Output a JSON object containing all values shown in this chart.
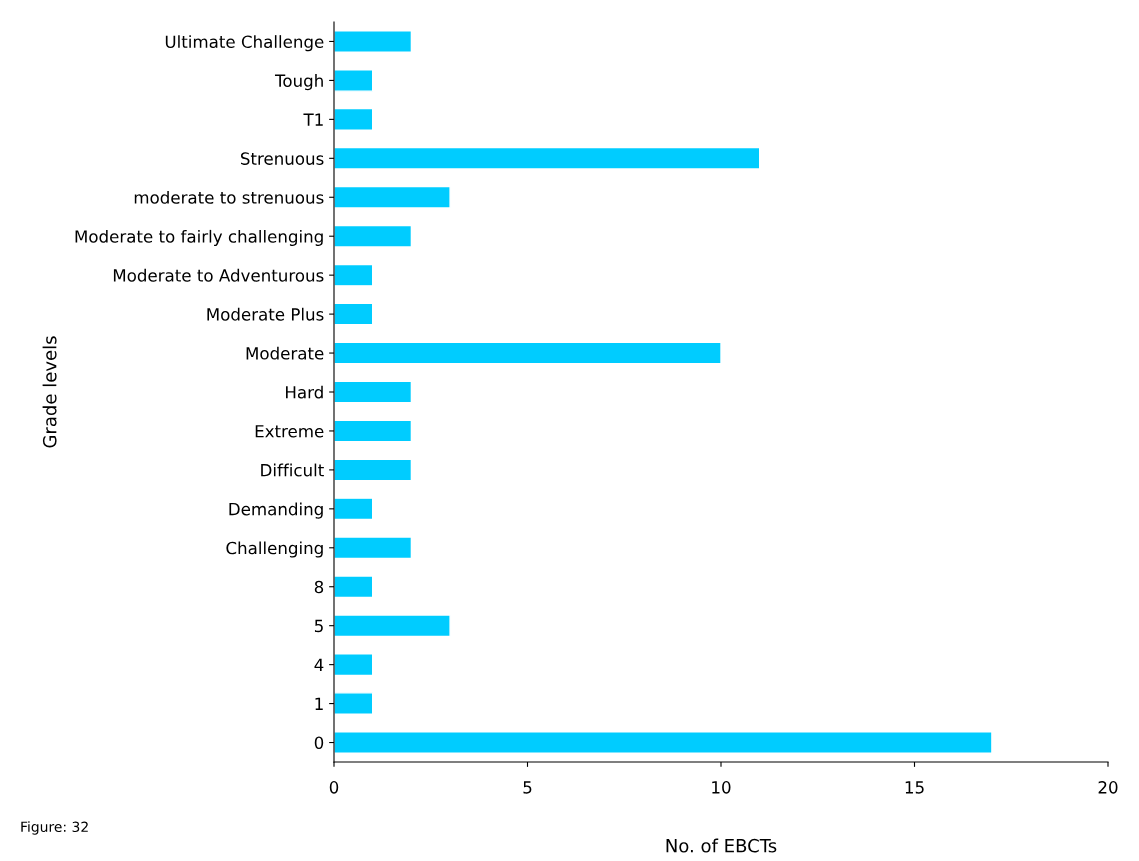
{
  "chart_data": {
    "type": "bar",
    "orientation": "horizontal",
    "categories": [
      "Ultimate Challenge",
      "Tough",
      "T1",
      "Strenuous",
      "moderate to strenuous",
      "Moderate to fairly challenging",
      "Moderate to Adventurous",
      "Moderate Plus",
      "Moderate",
      "Hard",
      "Extreme",
      "Difficult",
      "Demanding",
      "Challenging",
      "8",
      "5",
      "4",
      "1",
      "0"
    ],
    "values": [
      2,
      1,
      1,
      11,
      3,
      2,
      1,
      1,
      10,
      2,
      2,
      2,
      1,
      2,
      1,
      3,
      1,
      1,
      17
    ],
    "color": "#00ccff",
    "xlabel": "No. of EBCTs",
    "ylabel": "Grade levels",
    "xlim": [
      0,
      20
    ],
    "xticks": [
      0,
      5,
      10,
      15,
      20
    ],
    "grid": false,
    "legend": false,
    "annotations": [
      "Figure: 32"
    ]
  }
}
